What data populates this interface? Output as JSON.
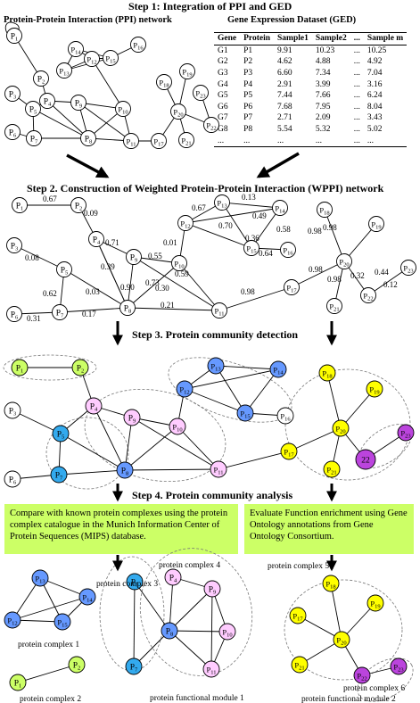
{
  "steps": {
    "s1": "Step 1: Integration of PPI and GED",
    "s2": "Step 2. Construction of Weighted Protein-Protein Interaction (WPPI) network",
    "s3": "Step 3. Protein community detection",
    "s4": "Step 4. Protein community analysis"
  },
  "ppi_title": "Protein-Protein Interaction (PPI) network",
  "ged": {
    "title": "Gene Expression Dataset (GED)",
    "headers": [
      "Gene",
      "Protein",
      "Sample1",
      "Sample2",
      "...",
      "Sample m"
    ],
    "rows": [
      [
        "G1",
        "P1",
        "9.91",
        "10.23",
        "...",
        "10.25"
      ],
      [
        "G2",
        "P2",
        "4.62",
        "4.88",
        "...",
        "4.92"
      ],
      [
        "G3",
        "P3",
        "6.60",
        "7.34",
        "...",
        "7.04"
      ],
      [
        "G4",
        "P4",
        "2.91",
        "3.99",
        "...",
        "3.16"
      ],
      [
        "G5",
        "P5",
        "7.44",
        "7.66",
        "...",
        "6.24"
      ],
      [
        "G6",
        "P6",
        "7.68",
        "7.95",
        "...",
        "8.04"
      ],
      [
        "G7",
        "P7",
        "2.71",
        "2.09",
        "...",
        "3.43"
      ],
      [
        "G8",
        "P8",
        "5.54",
        "5.32",
        "...",
        "5.02"
      ],
      [
        "...",
        "...",
        "...",
        "...",
        "...",
        "..."
      ]
    ]
  },
  "boxes": {
    "left": "Compare with known protein complexes using the protein complex catalogue in the Munich Information Center of Protein Sequences (MIPS) database.",
    "right": "Evaluate Function enrichment using Gene Ontology annotations from Gene Ontology Consortium."
  },
  "labels": {
    "complex1": "protein complex 1",
    "complex2": "protein complex 2",
    "complex3": "protein complex 3",
    "complex4": "protein complex 4",
    "complex5": "protein complex 5",
    "complex6": "protein complex 6",
    "module1": "protein functional module 1",
    "module2": "protein functional module 2"
  },
  "node_labels": {
    "P1": "P1",
    "P2": "P2",
    "P3": "P3",
    "P4": "P4",
    "P5": "P5",
    "P6": "P6",
    "P7": "P7",
    "P8": "P8",
    "P9": "P9",
    "P10": "P10",
    "P11": "P11",
    "P12": "P12",
    "P13": "P13",
    "P14": "P14",
    "P15": "P15",
    "P16": "P16",
    "P17": "P17",
    "P18": "P18",
    "P19": "P19",
    "P20": "P20",
    "P21": "P21",
    "P22": "P22",
    "P23": "P23",
    "n22": "22"
  },
  "weights": [
    "0.67",
    "0.09",
    "0.71",
    "0.55",
    "0.01",
    "0.67",
    "0.13",
    "0.49",
    "0.70",
    "0.36",
    "0.58",
    "0.64",
    "0.08",
    "0.03",
    "0.62",
    "0.31",
    "0.17",
    "0.39",
    "0.90",
    "0.73",
    "0.30",
    "0.59",
    "0.21",
    "0.98",
    "0.98",
    "0.98",
    "0.98",
    "0.98",
    "0.32",
    "0.12",
    "0.44"
  ],
  "colors": {
    "green": "#ccff66",
    "pink": "#ffccff",
    "blue": "#6699ff",
    "cyan": "#33aaee",
    "yellow": "#ffff00",
    "purple": "#bb44dd"
  }
}
